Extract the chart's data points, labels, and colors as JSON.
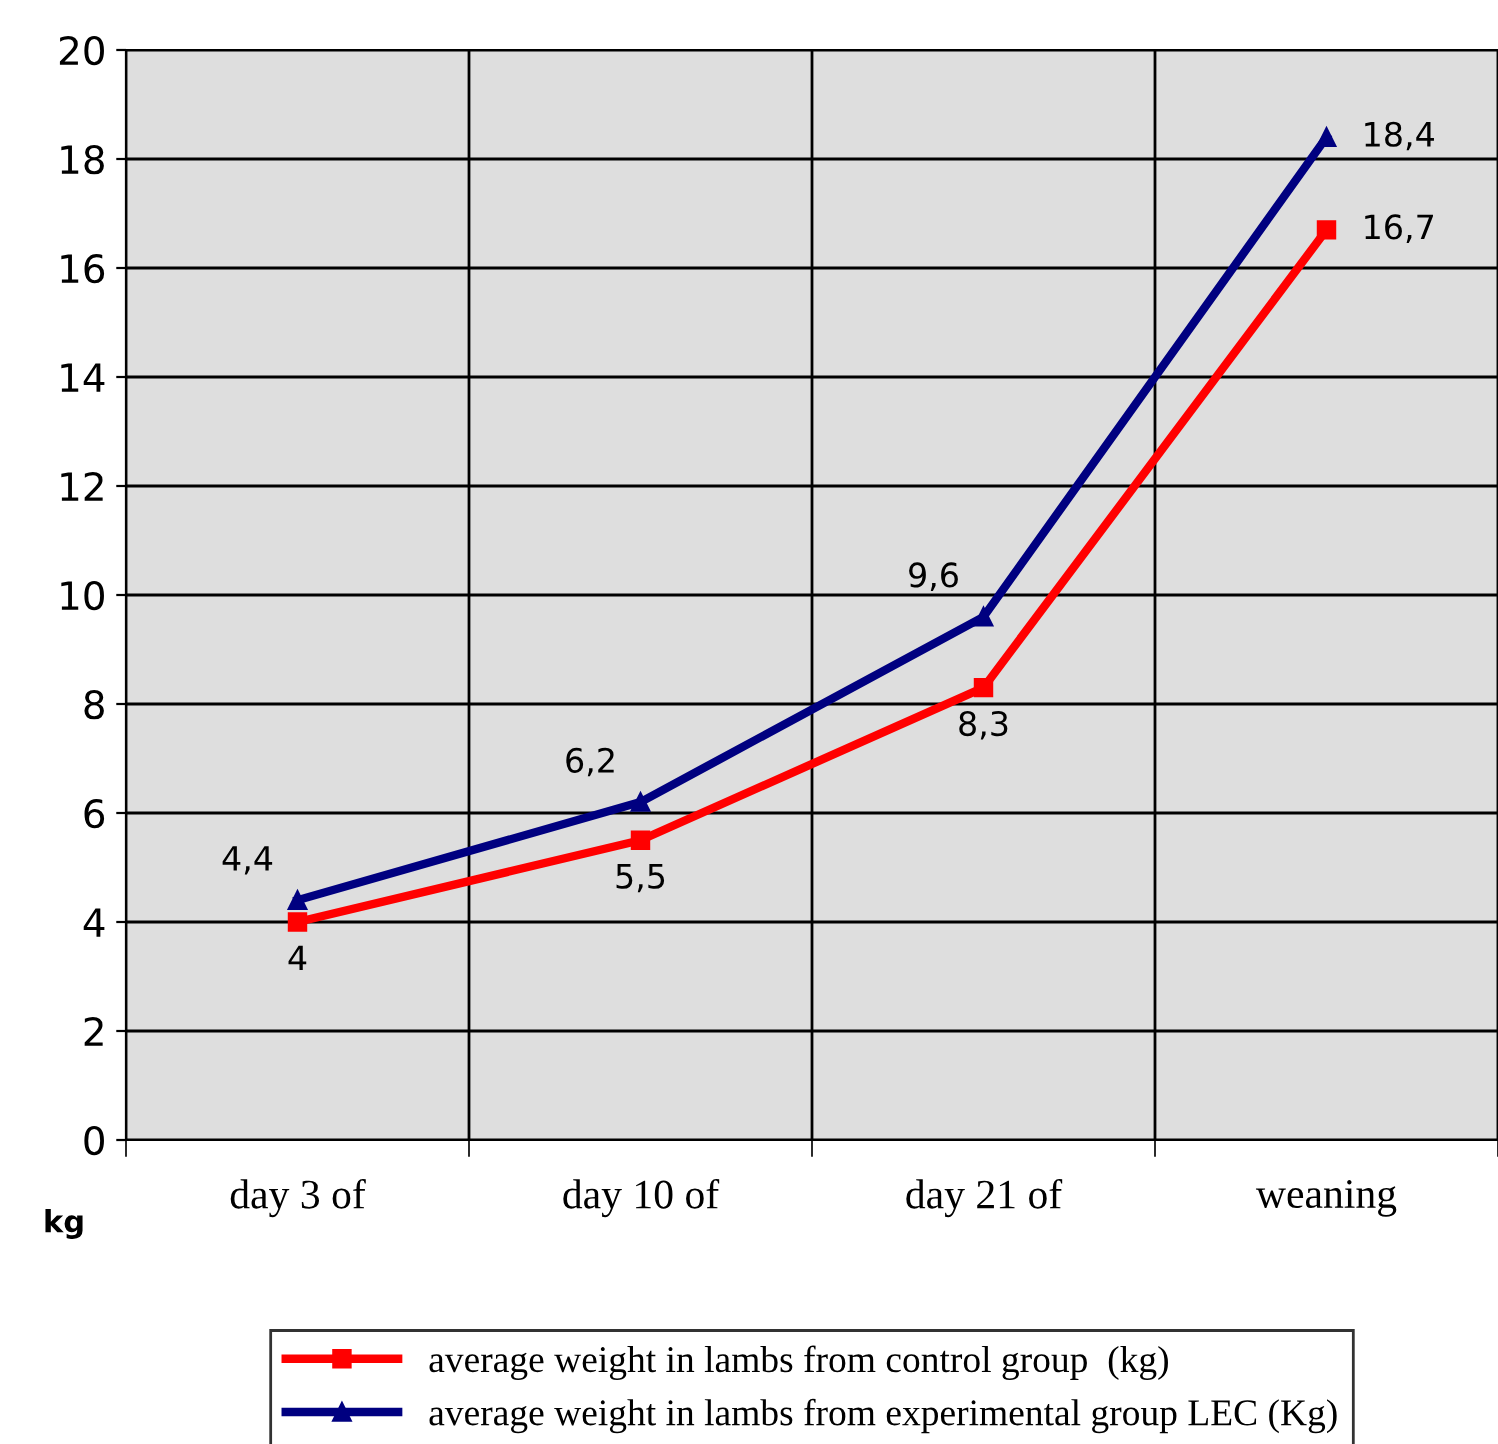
{
  "chart_data": {
    "type": "line",
    "ylabel": "kg",
    "categories": [
      "day 3 of",
      "day 10 of",
      "day 21 of",
      "weaning"
    ],
    "series": [
      {
        "name": "average weight in lambs from control group  (kg)",
        "color": "#ff0000",
        "marker": "square",
        "values": [
          4,
          5.5,
          8.3,
          16.7
        ],
        "value_labels": [
          "4",
          "5,5",
          "8,3",
          "16,7"
        ]
      },
      {
        "name": "average weight in lambs from experimental group LEC (Kg)",
        "color": "#000080",
        "marker": "triangle",
        "values": [
          4.4,
          6.2,
          9.6,
          18.4
        ],
        "value_labels": [
          "4,4",
          "6,2",
          "9,6",
          "18,4"
        ]
      }
    ],
    "ylim": [
      0,
      20
    ],
    "yticks": [
      0,
      2,
      4,
      6,
      8,
      10,
      12,
      14,
      16,
      18,
      20
    ],
    "grid": true,
    "legend": "bottom"
  }
}
